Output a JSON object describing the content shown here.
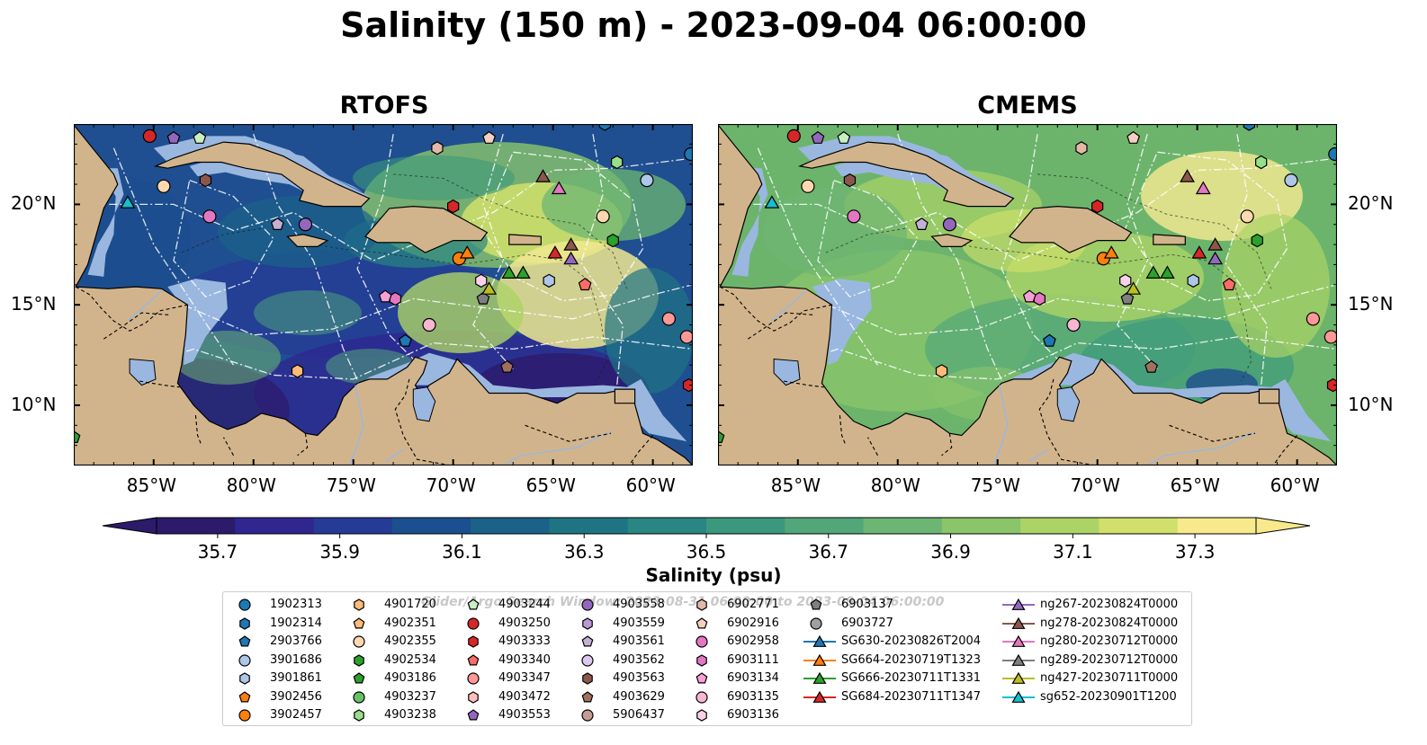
{
  "title": "Salinity (150 m) - 2023-09-04 06:00:00",
  "panels": [
    {
      "title": "RTOFS",
      "model": "rtofs"
    },
    {
      "title": "CMEMS",
      "model": "cmems"
    }
  ],
  "map": {
    "extent": {
      "lon": [
        -89,
        -58
      ],
      "lat": [
        7,
        24
      ]
    },
    "lon_ticks": [
      {
        "value": -85,
        "label": "85°W"
      },
      {
        "value": -80,
        "label": "80°W"
      },
      {
        "value": -75,
        "label": "75°W"
      },
      {
        "value": -70,
        "label": "70°W"
      },
      {
        "value": -65,
        "label": "65°W"
      },
      {
        "value": -60,
        "label": "60°W"
      }
    ],
    "lat_ticks": [
      {
        "value": 20,
        "label": "20°N"
      },
      {
        "value": 15,
        "label": "15°N"
      },
      {
        "value": 10,
        "label": "10°N"
      }
    ],
    "land_color": "#d2b48c",
    "shelf_color": "#9ab7e0",
    "deep_pacific_color": "#2d1b6c"
  },
  "colorbar": {
    "label": "Salinity (psu)",
    "min": 35.6,
    "max": 37.4,
    "ticks": [
      "35.7",
      "35.9",
      "36.1",
      "36.3",
      "36.5",
      "36.7",
      "36.9",
      "37.1",
      "37.3"
    ],
    "colors": [
      "#2c1a6b",
      "#2f2690",
      "#253b96",
      "#1b4f8f",
      "#1a6289",
      "#1f7484",
      "#2a8682",
      "#3a987c",
      "#52a77a",
      "#6db573",
      "#8bc56a",
      "#acd366",
      "#d1e06a",
      "#f7e98c"
    ]
  },
  "legend": {
    "watermark": "Glider/Argo Search Window: 2023-08-31 06:00:00 to 2023-09-04 06:00:00",
    "items": [
      {
        "label": "1902313",
        "marker": "circle",
        "color": "#1f77b4"
      },
      {
        "label": "1902314",
        "marker": "hexagon",
        "color": "#1f77b4"
      },
      {
        "label": "2903766",
        "marker": "pentagon",
        "color": "#1f77b4"
      },
      {
        "label": "3901686",
        "marker": "circle",
        "color": "#aec7e8"
      },
      {
        "label": "3901861",
        "marker": "hexagon",
        "color": "#aec7e8"
      },
      {
        "label": "3902456",
        "marker": "pentagon",
        "color": "#ff7f0e"
      },
      {
        "label": "3902457",
        "marker": "circle",
        "color": "#ff7f0e"
      },
      {
        "label": "4901720",
        "marker": "hexagon",
        "color": "#ffbb78"
      },
      {
        "label": "4902351",
        "marker": "pentagon",
        "color": "#ffbb78"
      },
      {
        "label": "4902355",
        "marker": "circle",
        "color": "#ffd8b0"
      },
      {
        "label": "4902534",
        "marker": "hexagon",
        "color": "#2ca02c"
      },
      {
        "label": "4903186",
        "marker": "pentagon",
        "color": "#2ca02c"
      },
      {
        "label": "4903237",
        "marker": "circle",
        "color": "#66c266"
      },
      {
        "label": "4903238",
        "marker": "hexagon",
        "color": "#98df8a"
      },
      {
        "label": "4903244",
        "marker": "pentagon",
        "color": "#c8f0c0"
      },
      {
        "label": "4903250",
        "marker": "circle",
        "color": "#d62728"
      },
      {
        "label": "4903333",
        "marker": "hexagon",
        "color": "#d62728"
      },
      {
        "label": "4903340",
        "marker": "pentagon",
        "color": "#ff6b6b"
      },
      {
        "label": "4903347",
        "marker": "circle",
        "color": "#ff9896"
      },
      {
        "label": "4903472",
        "marker": "hexagon",
        "color": "#ffc0bd"
      },
      {
        "label": "4903553",
        "marker": "pentagon",
        "color": "#9467bd"
      },
      {
        "label": "4903558",
        "marker": "circle",
        "color": "#9467bd"
      },
      {
        "label": "4903559",
        "marker": "hexagon",
        "color": "#b89ad8"
      },
      {
        "label": "4903561",
        "marker": "pentagon",
        "color": "#c5b0d5"
      },
      {
        "label": "4903562",
        "marker": "circle",
        "color": "#dcc8ec"
      },
      {
        "label": "4903563",
        "marker": "hexagon",
        "color": "#8c564b"
      },
      {
        "label": "4903629",
        "marker": "pentagon",
        "color": "#a0705f"
      },
      {
        "label": "5906437",
        "marker": "circle",
        "color": "#c49c94"
      },
      {
        "label": "6902771",
        "marker": "hexagon",
        "color": "#e4b8a8"
      },
      {
        "label": "6902916",
        "marker": "pentagon",
        "color": "#f5d0c0"
      },
      {
        "label": "6902958",
        "marker": "circle",
        "color": "#e377c2"
      },
      {
        "label": "6903111",
        "marker": "hexagon",
        "color": "#e377c2"
      },
      {
        "label": "6903134",
        "marker": "pentagon",
        "color": "#f7a0d8"
      },
      {
        "label": "6903135",
        "marker": "circle",
        "color": "#f7b6d2"
      },
      {
        "label": "6903136",
        "marker": "hexagon",
        "color": "#fbd0e8"
      },
      {
        "label": "6903137",
        "marker": "pentagon",
        "color": "#7f7f7f"
      },
      {
        "label": "6903727",
        "marker": "circle",
        "color": "#a0a0a0"
      },
      {
        "label": "SG630-20230826T2004",
        "marker": "glider",
        "color": "#1f77b4"
      },
      {
        "label": "SG664-20230719T1323",
        "marker": "glider",
        "color": "#ff7f0e"
      },
      {
        "label": "SG666-20230711T1331",
        "marker": "glider",
        "color": "#2ca02c"
      },
      {
        "label": "SG684-20230711T1347",
        "marker": "glider",
        "color": "#d62728"
      },
      {
        "label": "ng267-20230824T0000",
        "marker": "glider",
        "color": "#9467bd"
      },
      {
        "label": "ng278-20230824T0000",
        "marker": "glider",
        "color": "#8c564b"
      },
      {
        "label": "ng280-20230712T0000",
        "marker": "glider",
        "color": "#e377c2"
      },
      {
        "label": "ng289-20230712T0000",
        "marker": "glider",
        "color": "#7f7f7f"
      },
      {
        "label": "ng427-20230711T0000",
        "marker": "glider",
        "color": "#bcbd22"
      },
      {
        "label": "sg652-20230901T1200",
        "marker": "glider",
        "color": "#17becf"
      }
    ]
  },
  "platforms": [
    {
      "id": "4903250",
      "lon": -85.2,
      "lat": 23.4
    },
    {
      "id": "4903553",
      "lon": -84.0,
      "lat": 23.3
    },
    {
      "id": "4903244",
      "lon": -82.7,
      "lat": 23.3
    },
    {
      "id": "1902313",
      "lon": -58.1,
      "lat": 22.5
    },
    {
      "id": "1902314",
      "lon": -62.4,
      "lat": 24.0
    },
    {
      "id": "4903563",
      "lon": -82.4,
      "lat": 21.2
    },
    {
      "id": "4902355",
      "lon": -84.5,
      "lat": 20.9
    },
    {
      "id": "6902958",
      "lon": -82.2,
      "lat": 19.4
    },
    {
      "id": "4903561",
      "lon": -78.8,
      "lat": 19.0
    },
    {
      "id": "4903558",
      "lon": -77.4,
      "lat": 19.0
    },
    {
      "id": "6902771",
      "lon": -70.8,
      "lat": 22.8
    },
    {
      "id": "6902916",
      "lon": -68.2,
      "lat": 23.3
    },
    {
      "id": "4903238",
      "lon": -61.8,
      "lat": 22.1
    },
    {
      "id": "3901686",
      "lon": -60.3,
      "lat": 21.2
    },
    {
      "id": "4903333",
      "lon": -70.0,
      "lat": 19.9
    },
    {
      "id": "4902355",
      "lon": -62.5,
      "lat": 19.4
    },
    {
      "id": "4902534",
      "lon": -62.0,
      "lat": 18.2
    },
    {
      "id": "3902457",
      "lon": -69.7,
      "lat": 17.3
    },
    {
      "id": "6903111",
      "lon": -72.9,
      "lat": 15.3
    },
    {
      "id": "6903134",
      "lon": -73.4,
      "lat": 15.4
    },
    {
      "id": "6903136",
      "lon": -68.6,
      "lat": 16.2
    },
    {
      "id": "6903137",
      "lon": -68.5,
      "lat": 15.3
    },
    {
      "id": "3901861",
      "lon": -65.2,
      "lat": 16.2
    },
    {
      "id": "4903340",
      "lon": -63.4,
      "lat": 16.0
    },
    {
      "id": "6903135",
      "lon": -71.2,
      "lat": 14.0
    },
    {
      "id": "2903766",
      "lon": -72.4,
      "lat": 13.2
    },
    {
      "id": "4901720",
      "lon": -77.8,
      "lat": 11.7
    },
    {
      "id": "4903629",
      "lon": -67.3,
      "lat": 11.9
    },
    {
      "id": "4903347",
      "lon": -59.2,
      "lat": 14.3
    },
    {
      "id": "4903347",
      "lon": -58.3,
      "lat": 13.4
    },
    {
      "id": "4903333",
      "lon": -58.2,
      "lat": 11.0
    },
    {
      "id": "4903186",
      "lon": -89.0,
      "lat": 8.4
    }
  ],
  "gliders": [
    {
      "id": "sg652-20230901T1200",
      "lon": -86.3,
      "lat": 20.1
    },
    {
      "id": "ng278-20230824T0000",
      "lon": -65.5,
      "lat": 21.4
    },
    {
      "id": "ng280-20230712T0000",
      "lon": -64.7,
      "lat": 20.8
    },
    {
      "id": "SG664-20230719T1323",
      "lon": -69.3,
      "lat": 17.6
    },
    {
      "id": "SG666-20230711T1331",
      "lon": -67.2,
      "lat": 16.6
    },
    {
      "id": "SG666-20230711T1331",
      "lon": -66.5,
      "lat": 16.6
    },
    {
      "id": "SG684-20230711T1347",
      "lon": -64.9,
      "lat": 17.6
    },
    {
      "id": "ng278-20230824T0000",
      "lon": -64.1,
      "lat": 18.0
    },
    {
      "id": "ng267-20230824T0000",
      "lon": -64.1,
      "lat": 17.3
    },
    {
      "id": "ng427-20230711T0000",
      "lon": -68.2,
      "lat": 15.8
    }
  ]
}
